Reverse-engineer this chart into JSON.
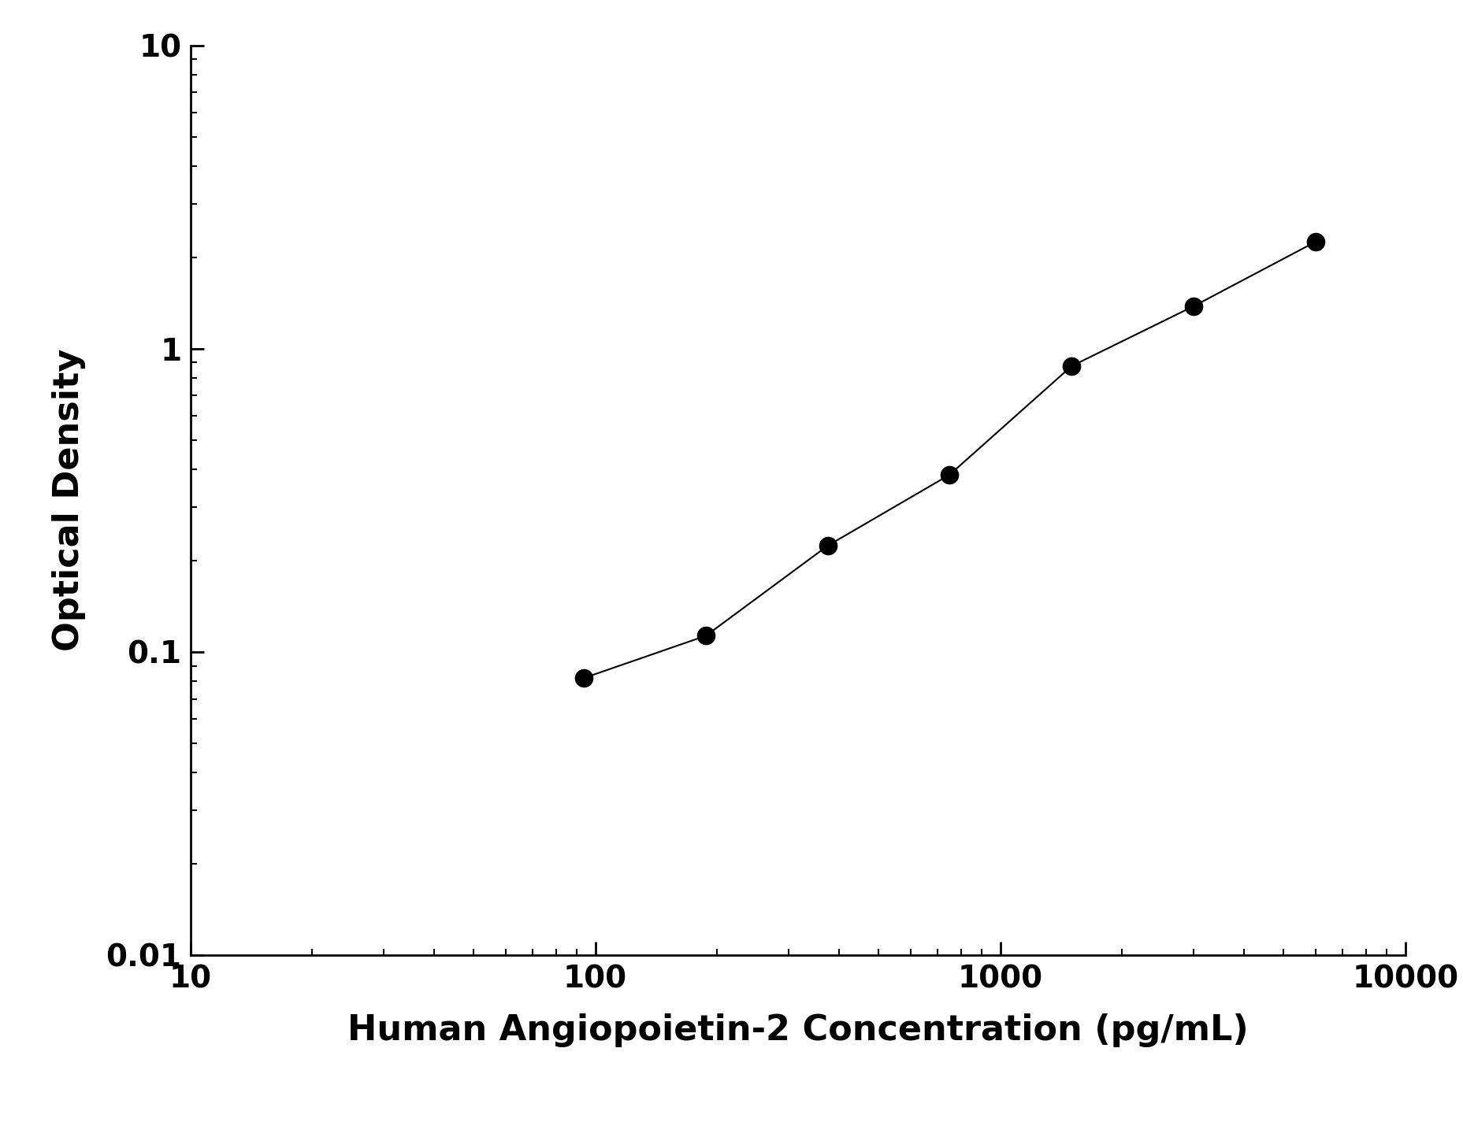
{
  "x_data": [
    93.75,
    187.5,
    375,
    750,
    1500,
    3000,
    6000
  ],
  "y_data": [
    0.082,
    0.113,
    0.224,
    0.384,
    0.876,
    1.38,
    2.25
  ],
  "xlabel": "Human Angiopoietin-2 Concentration (pg/mL)",
  "ylabel": "Optical Density",
  "xlim": [
    10,
    10000
  ],
  "ylim": [
    0.01,
    10
  ],
  "line_color": "#000000",
  "marker_color": "#000000",
  "marker_size": 16,
  "line_width": 1.5,
  "xlabel_fontsize": 32,
  "ylabel_fontsize": 32,
  "tick_fontsize": 28,
  "background_color": "#ffffff"
}
